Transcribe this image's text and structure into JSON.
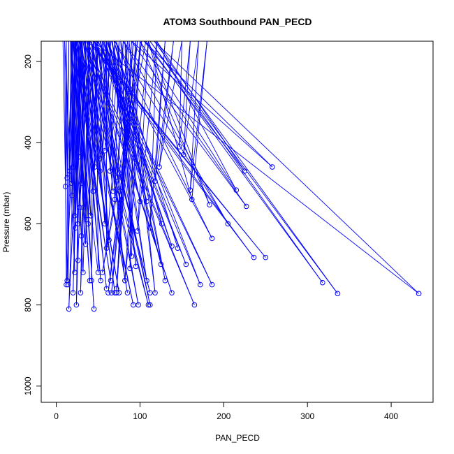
{
  "chart_data": {
    "type": "line",
    "title": "ATOM3 Southbound PAN_PECD",
    "xlabel": "PAN_PECD",
    "ylabel": "Pressure (mbar)",
    "xlim": [
      -18,
      450
    ],
    "ylim": [
      1040,
      150
    ],
    "y_reversed": true,
    "xticks": [
      0,
      100,
      200,
      300,
      400
    ],
    "yticks": [
      200,
      400,
      600,
      800,
      1000
    ],
    "grid": false,
    "line_color": "#0000ff",
    "marker": "open-circle",
    "series": [
      {
        "points": [
          [
            8,
            150
          ],
          [
            13,
            740
          ],
          [
            18,
            150
          ],
          [
            22,
            720
          ],
          [
            10,
            150
          ],
          [
            12,
            750
          ],
          [
            25,
            150
          ],
          [
            15,
            810
          ],
          [
            30,
            150
          ],
          [
            20,
            770
          ],
          [
            28,
            150
          ],
          [
            24,
            800
          ],
          [
            35,
            150
          ],
          [
            29,
            770
          ],
          [
            40,
            150
          ],
          [
            32,
            720
          ],
          [
            18,
            150
          ],
          [
            14,
            750
          ],
          [
            12,
            150
          ],
          [
            11,
            508
          ],
          [
            15,
            150
          ],
          [
            13,
            487
          ],
          [
            20,
            150
          ],
          [
            16,
            470
          ],
          [
            25,
            150
          ],
          [
            18,
            500
          ],
          [
            22,
            150
          ],
          [
            20,
            460
          ],
          [
            28,
            150
          ],
          [
            27,
            435
          ],
          [
            30,
            150
          ],
          [
            22,
            580
          ],
          [
            18,
            150
          ],
          [
            26,
            600
          ],
          [
            35,
            150
          ],
          [
            28,
            560
          ],
          [
            40,
            150
          ],
          [
            35,
            650
          ],
          [
            22,
            150
          ],
          [
            30,
            630
          ],
          [
            45,
            150
          ],
          [
            38,
            600
          ],
          [
            50,
            150
          ],
          [
            44,
            520
          ],
          [
            55,
            150
          ],
          [
            52,
            440
          ],
          [
            60,
            150
          ],
          [
            55,
            430
          ],
          [
            65,
            150
          ],
          [
            58,
            420
          ],
          [
            70,
            150
          ],
          [
            64,
            470
          ],
          [
            75,
            150
          ],
          [
            70,
            540
          ],
          [
            60,
            150
          ],
          [
            60,
            660
          ],
          [
            80,
            150
          ],
          [
            73,
            485
          ],
          [
            85,
            150
          ],
          [
            78,
            540
          ],
          [
            90,
            150
          ],
          [
            72,
            760
          ],
          [
            95,
            150
          ],
          [
            88,
            710
          ],
          [
            100,
            150
          ],
          [
            82,
            740
          ],
          [
            110,
            150
          ],
          [
            97,
            618
          ],
          [
            120,
            150
          ],
          [
            112,
            610
          ],
          [
            130,
            150
          ],
          [
            118,
            495
          ],
          [
            140,
            150
          ],
          [
            123,
            460
          ],
          [
            150,
            150
          ],
          [
            147,
            410
          ],
          [
            160,
            150
          ],
          [
            152,
            430
          ],
          [
            170,
            150
          ],
          [
            160,
            517
          ],
          [
            180,
            150
          ],
          [
            162,
            540
          ],
          [
            110,
            150
          ],
          [
            183,
            553
          ],
          [
            100,
            150
          ],
          [
            215,
            517
          ],
          [
            120,
            150
          ],
          [
            225,
            470
          ],
          [
            105,
            150
          ],
          [
            258,
            460
          ],
          [
            90,
            150
          ],
          [
            227,
            557
          ],
          [
            80,
            150
          ],
          [
            205,
            600
          ],
          [
            70,
            150
          ],
          [
            186,
            636
          ],
          [
            60,
            150
          ],
          [
            172,
            750
          ],
          [
            50,
            150
          ],
          [
            186,
            750
          ],
          [
            45,
            150
          ],
          [
            236,
            683
          ],
          [
            40,
            150
          ],
          [
            250,
            683
          ],
          [
            38,
            150
          ],
          [
            138,
            770
          ],
          [
            36,
            150
          ],
          [
            112,
            770
          ],
          [
            34,
            150
          ],
          [
            85,
            770
          ],
          [
            32,
            150
          ],
          [
            70,
            770
          ],
          [
            30,
            150
          ],
          [
            53,
            740
          ],
          [
            28,
            150
          ],
          [
            60,
            760
          ],
          [
            26,
            150
          ],
          [
            45,
            810
          ],
          [
            24,
            150
          ],
          [
            75,
            770
          ],
          [
            22,
            150
          ],
          [
            65,
            740
          ],
          [
            20,
            150
          ],
          [
            40,
            740
          ],
          [
            23,
            150
          ],
          [
            92,
            800
          ],
          [
            27,
            150
          ],
          [
            110,
            800
          ],
          [
            33,
            150
          ],
          [
            165,
            800
          ],
          [
            37,
            150
          ],
          [
            98,
            800
          ],
          [
            42,
            150
          ],
          [
            112,
            800
          ],
          [
            47,
            150
          ],
          [
            155,
            700
          ],
          [
            52,
            150
          ],
          [
            138,
            655
          ],
          [
            57,
            150
          ],
          [
            125,
            700
          ],
          [
            62,
            150
          ],
          [
            108,
            740
          ],
          [
            67,
            150
          ],
          [
            95,
            705
          ],
          [
            72,
            150
          ],
          [
            130,
            740
          ],
          [
            77,
            150
          ],
          [
            90,
            680
          ],
          [
            82,
            150
          ],
          [
            118,
            770
          ],
          [
            87,
            150
          ],
          [
            72,
            770
          ],
          [
            92,
            150
          ],
          [
            66,
            770
          ],
          [
            97,
            150
          ],
          [
            62,
            770
          ],
          [
            102,
            150
          ],
          [
            55,
            720
          ],
          [
            107,
            150
          ],
          [
            318,
            745
          ],
          [
            112,
            150
          ],
          [
            336,
            772
          ],
          [
            117,
            150
          ],
          [
            433,
            772
          ],
          [
            44,
            150
          ],
          [
            42,
            740
          ],
          [
            48,
            150
          ],
          [
            50,
            720
          ],
          [
            17,
            150
          ],
          [
            19,
            530
          ],
          [
            19,
            150
          ],
          [
            23,
            610
          ],
          [
            21,
            150
          ],
          [
            26,
            690
          ],
          [
            23,
            150
          ],
          [
            30,
            500
          ],
          [
            26,
            150
          ],
          [
            33,
            560
          ],
          [
            29,
            150
          ],
          [
            36,
            590
          ],
          [
            31,
            150
          ],
          [
            41,
            580
          ],
          [
            34,
            150
          ],
          [
            46,
            460
          ],
          [
            37,
            150
          ],
          [
            52,
            470
          ],
          [
            39,
            150
          ],
          [
            58,
            600
          ],
          [
            42,
            150
          ],
          [
            63,
            640
          ],
          [
            46,
            150
          ],
          [
            68,
            520
          ],
          [
            49,
            150
          ],
          [
            76,
            520
          ],
          [
            53,
            150
          ],
          [
            82,
            740
          ],
          [
            56,
            150
          ],
          [
            96,
            452
          ],
          [
            59,
            150
          ],
          [
            100,
            545
          ],
          [
            63,
            150
          ],
          [
            108,
            545
          ],
          [
            66,
            150
          ],
          [
            126,
            600
          ],
          [
            69,
            150
          ],
          [
            145,
            660
          ]
        ]
      }
    ]
  }
}
